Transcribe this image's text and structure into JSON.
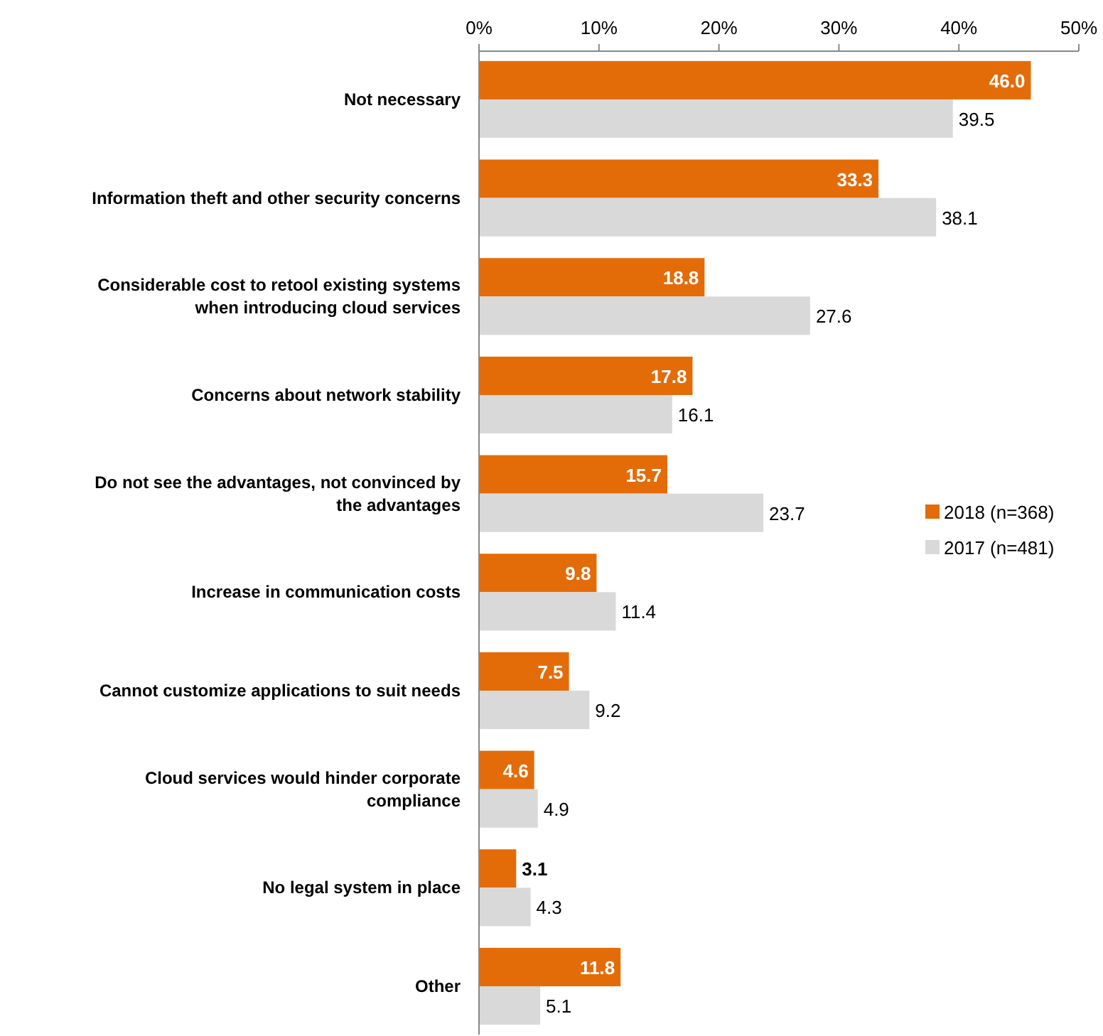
{
  "chart_data": {
    "type": "bar",
    "orientation": "horizontal",
    "categories": [
      "Not necessary",
      "Information theft and other security concerns",
      "Considerable cost to retool existing systems when introducing cloud services",
      "Concerns about network stability",
      "Do not see the advantages, not convinced by the advantages",
      "Increase in communication costs",
      "Cannot customize applications to suit needs",
      "Cloud services would hinder corporate compliance",
      "No legal system in place",
      "Other"
    ],
    "series": [
      {
        "name": "2018 (n=368)",
        "color": "#e36c09",
        "values": [
          46.0,
          33.3,
          18.8,
          17.8,
          15.7,
          9.8,
          7.5,
          4.6,
          3.1,
          11.8
        ],
        "value_labels": [
          "46.0",
          "33.3",
          "18.8",
          "17.8",
          "15.7",
          "9.8",
          "7.5",
          "4.6",
          "3.1",
          "11.8"
        ]
      },
      {
        "name": "2017 (n=481)",
        "color": "#d9d9d9",
        "values": [
          39.5,
          38.1,
          27.6,
          16.1,
          23.7,
          11.4,
          9.2,
          4.9,
          4.3,
          5.1
        ],
        "value_labels": [
          "39.5",
          "38.1",
          "27.6",
          "16.1",
          "23.7",
          "11.4",
          "9.2",
          "4.9",
          "4.3",
          "5.1"
        ]
      }
    ],
    "xlim": [
      0,
      50
    ],
    "xticks": [
      {
        "value": 0,
        "label": "0%"
      },
      {
        "value": 10,
        "label": "10%"
      },
      {
        "value": 20,
        "label": "20%"
      },
      {
        "value": 30,
        "label": "30%"
      },
      {
        "value": 40,
        "label": "40%"
      },
      {
        "value": 50,
        "label": "50%"
      }
    ],
    "legend": "right",
    "grid": false
  }
}
